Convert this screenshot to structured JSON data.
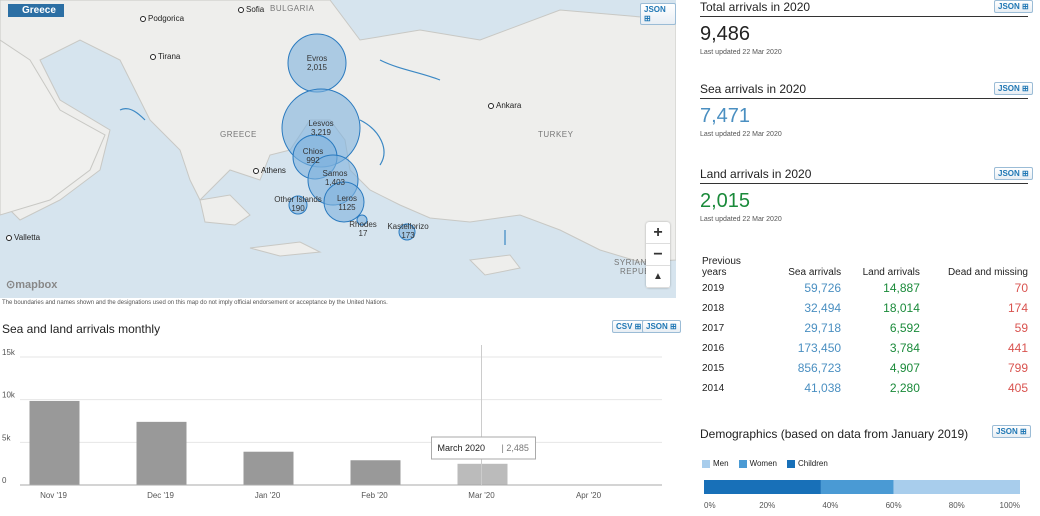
{
  "map": {
    "country_tag": "Greece",
    "json_label": "JSON",
    "cities": [
      {
        "name": "Podgorica",
        "id": "podgorica"
      },
      {
        "name": "Sofia",
        "id": "sofia"
      },
      {
        "name": "Tirana",
        "id": "tirana"
      },
      {
        "name": "Ankara",
        "id": "ankara"
      },
      {
        "name": "Athens",
        "id": "athens"
      },
      {
        "name": "Valletta",
        "id": "valletta"
      }
    ],
    "regions": [
      "BULGARIA",
      "GREECE",
      "TURKEY",
      "SYRIAN A",
      "REPUB"
    ],
    "bubbles": [
      {
        "name": "Evros",
        "value": "2,015"
      },
      {
        "name": "Lesvos",
        "value": "3,219"
      },
      {
        "name": "Chios",
        "value": "992"
      },
      {
        "name": "Samos",
        "value": "1,403"
      },
      {
        "name": "Other Islands",
        "value": "190"
      },
      {
        "name": "Leros",
        "value": "1125"
      },
      {
        "name": "Rhodes",
        "value": "17"
      },
      {
        "name": "Kastellorizo",
        "value": "173"
      }
    ],
    "zoom_in": "+",
    "zoom_out": "−",
    "mapbox": "mapbox",
    "disclaimer": "The boundaries and names shown and the designations used on this map do not imply official endorsement or acceptance by the United Nations."
  },
  "monthly": {
    "title": "Sea and land arrivals monthly",
    "csv_label": "CSV",
    "json_label": "JSON",
    "tooltip": {
      "month": "March 2020",
      "value": "2,485"
    }
  },
  "chart_data": {
    "type": "bar",
    "categories": [
      "Nov '19",
      "Dec '19",
      "Jan '20",
      "Feb '20",
      "Mar '20",
      "Apr '20"
    ],
    "values": [
      9850,
      7400,
      3900,
      2900,
      2485,
      null
    ],
    "ylim": [
      0,
      15000
    ],
    "yticks": [
      "0",
      "5k",
      "10k",
      "15k"
    ],
    "colors": {
      "bar": "#999999",
      "highlight": "#bbbbbb"
    }
  },
  "stats": {
    "total": {
      "title": "Total arrivals in 2020",
      "value": "9,486",
      "updated": "Last updated 22 Mar 2020",
      "color": "#222222"
    },
    "sea": {
      "title": "Sea arrivals in 2020",
      "value": "7,471",
      "updated": "Last updated 22 Mar 2020",
      "color": "#4a8fc1"
    },
    "land": {
      "title": "Land arrivals in 2020",
      "value": "2,015",
      "updated": "Last updated 22 Mar 2020",
      "color": "#1a8a3a"
    },
    "json_label": "JSON"
  },
  "previous": {
    "header": {
      "year": "Previous years",
      "sea": "Sea arrivals",
      "land": "Land arrivals",
      "dead": "Dead and missing"
    },
    "rows": [
      {
        "year": "2019",
        "sea": "59,726",
        "land": "14,887",
        "dead": "70"
      },
      {
        "year": "2018",
        "sea": "32,494",
        "land": "18,014",
        "dead": "174"
      },
      {
        "year": "2017",
        "sea": "29,718",
        "land": "6,592",
        "dead": "59"
      },
      {
        "year": "2016",
        "sea": "173,450",
        "land": "3,784",
        "dead": "441"
      },
      {
        "year": "2015",
        "sea": "856,723",
        "land": "4,907",
        "dead": "799"
      },
      {
        "year": "2014",
        "sea": "41,038",
        "land": "2,280",
        "dead": "405"
      }
    ]
  },
  "demographics": {
    "title": "Demographics (based on data from January 2019)",
    "json_label": "JSON",
    "legend": [
      {
        "label": "Men",
        "color": "#a8cdec"
      },
      {
        "label": "Women",
        "color": "#4a9ad4"
      },
      {
        "label": "Children",
        "color": "#1870b8"
      }
    ],
    "shares": {
      "children": 0.37,
      "women": 0.23,
      "men": 0.4
    },
    "axis": [
      "0%",
      "20%",
      "40%",
      "60%",
      "80%",
      "100%"
    ]
  }
}
